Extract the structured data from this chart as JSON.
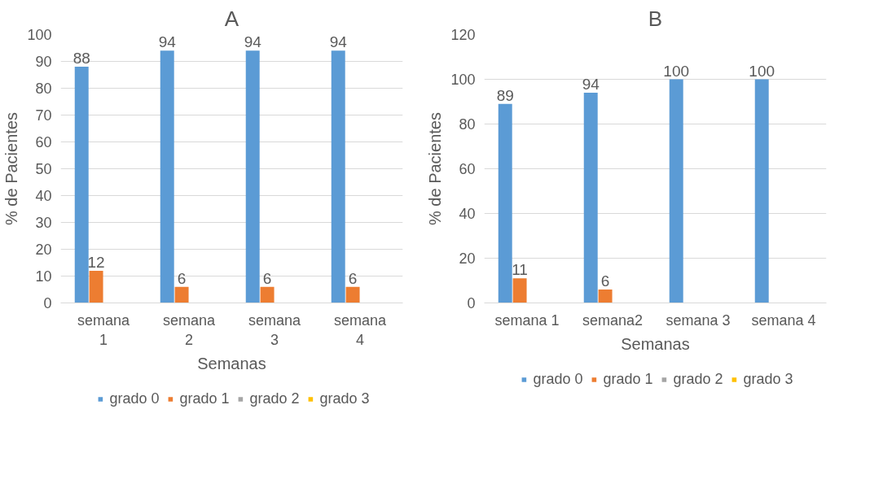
{
  "chart_data": [
    {
      "type": "bar",
      "title": "A",
      "xlabel": "Semanas",
      "ylabel": "% de Pacientes",
      "categories": [
        "semana 1",
        "semana 2",
        "semana 3",
        "semana 4"
      ],
      "ylim": [
        0,
        100
      ],
      "yticks": [
        0,
        10,
        20,
        30,
        40,
        50,
        60,
        70,
        80,
        90,
        100
      ],
      "grid": "y",
      "legend": "bottom",
      "data_labels": true,
      "series": [
        {
          "name": "grado 0",
          "color": "#5b9bd5",
          "values": [
            88,
            94,
            94,
            94
          ]
        },
        {
          "name": "grado 1",
          "color": "#ed7d31",
          "values": [
            12,
            6,
            6,
            6
          ]
        },
        {
          "name": "grado 2",
          "color": "#a5a5a5",
          "values": [
            null,
            null,
            null,
            null
          ]
        },
        {
          "name": "grado 3",
          "color": "#ffc000",
          "values": [
            null,
            null,
            null,
            null
          ]
        }
      ]
    },
    {
      "type": "bar",
      "title": "B",
      "xlabel": "Semanas",
      "ylabel": "% de Pacientes",
      "categories": [
        "semana 1",
        "semana2",
        "semana 3",
        "semana 4"
      ],
      "ylim": [
        0,
        120
      ],
      "yticks": [
        0,
        20,
        40,
        60,
        80,
        100,
        120
      ],
      "grid": "y",
      "legend": "bottom",
      "data_labels": true,
      "series": [
        {
          "name": "grado 0",
          "color": "#5b9bd5",
          "values": [
            89,
            94,
            100,
            100
          ]
        },
        {
          "name": "grado 1",
          "color": "#ed7d31",
          "values": [
            11,
            6,
            null,
            null
          ]
        },
        {
          "name": "grado 2",
          "color": "#a5a5a5",
          "values": [
            null,
            null,
            null,
            null
          ]
        },
        {
          "name": "grado 3",
          "color": "#ffc000",
          "values": [
            null,
            null,
            null,
            null
          ]
        }
      ]
    }
  ]
}
